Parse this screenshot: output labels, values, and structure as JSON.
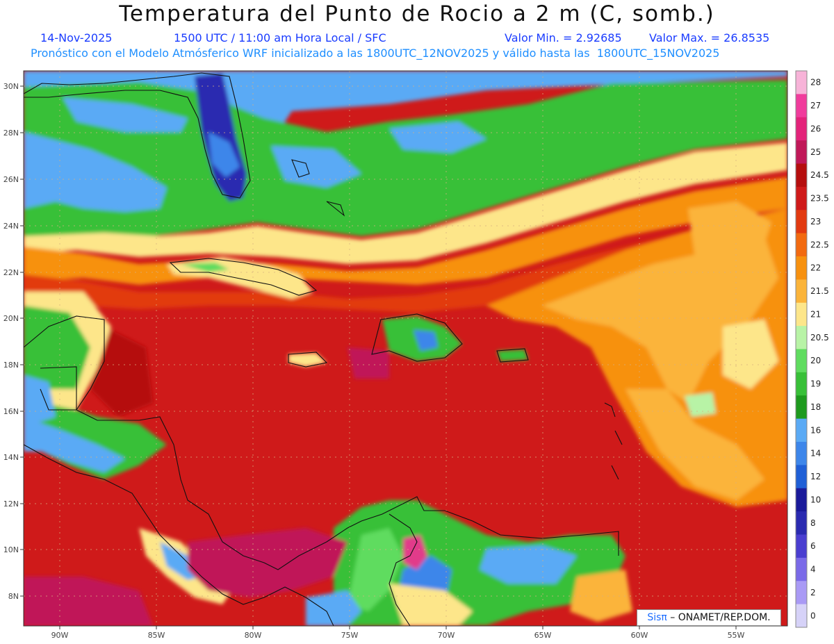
{
  "header": {
    "title": "Temperatura del Punto de Rocio a 2 m (C, somb.)",
    "date": "14-Nov-2025",
    "time": "1500 UTC / 11:00 am Hora Local / SFC",
    "min_label": "Valor Min. = 2.92685",
    "max_label": "Valor Max. = 26.8535",
    "forecast_line": "Pronóstico con el Modelo Atmósferico WRF inicializado a las 1800UTC_12NOV2025 y válido hasta las  1800UTC_15NOV2025"
  },
  "axes": {
    "lat_labels": [
      "30N",
      "28N",
      "26N",
      "24N",
      "22N",
      "20N",
      "18N",
      "16N",
      "14N",
      "12N",
      "10N",
      "8N"
    ],
    "lon_labels": [
      "90W",
      "85W",
      "80W",
      "75W",
      "70W",
      "65W",
      "60W",
      "55W"
    ]
  },
  "colorbar": {
    "labels": [
      "28",
      "27",
      "26",
      "25",
      "24.5",
      "23.5",
      "23",
      "22.5",
      "22",
      "21.5",
      "21",
      "20.5",
      "20",
      "19",
      "18",
      "16",
      "14",
      "12",
      "10",
      "8",
      "6",
      "4",
      "2",
      "0"
    ],
    "colors": [
      "#f7b3d8",
      "#f03c9c",
      "#e3237a",
      "#c01858",
      "#b50e0e",
      "#cf1a1a",
      "#e23a10",
      "#f26a10",
      "#f7910f",
      "#fbb43a",
      "#fde68a",
      "#b8f3a6",
      "#5fdc5f",
      "#38c038",
      "#1e9a1e",
      "#5aaaf5",
      "#3d86ea",
      "#1f5fd6",
      "#1a1a9a",
      "#2a2ab0",
      "#4a3ed0",
      "#7a6ae8",
      "#a99af5",
      "#d6d2f8"
    ]
  },
  "credit": {
    "logo": "Sisπ",
    "text": " – ONAMET/REP.DOM."
  }
}
